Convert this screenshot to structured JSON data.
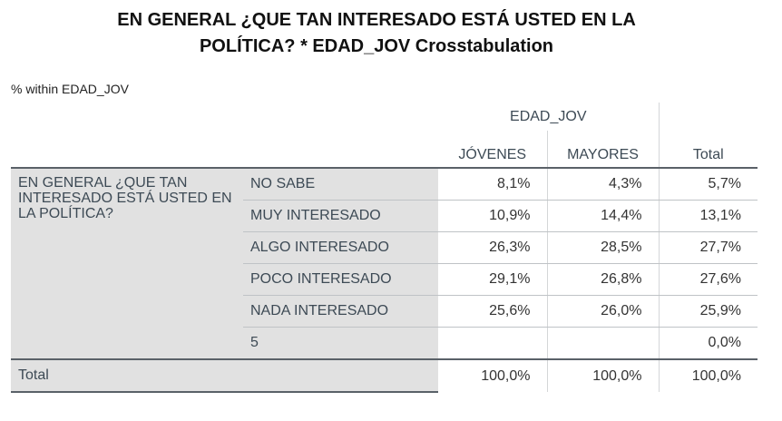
{
  "title_line1": "EN GENERAL ¿QUE TAN INTERESADO ESTÁ USTED EN LA",
  "title_line2": "POLÍTICA? * EDAD_JOV Crosstabulation",
  "subtitle": "% within EDAD_JOV",
  "header": {
    "group": "EDAD_JOV",
    "columns": [
      "JÓVENES",
      "MAYORES"
    ],
    "total": "Total"
  },
  "row_variable": "EN GENERAL ¿QUE TAN INTERESADO ESTÁ USTED EN LA POLÍTICA?",
  "rows": [
    {
      "label": "NO SABE",
      "jovenes": "8,1%",
      "mayores": "4,3%",
      "total": "5,7%"
    },
    {
      "label": "MUY INTERESADO",
      "jovenes": "10,9%",
      "mayores": "14,4%",
      "total": "13,1%"
    },
    {
      "label": "ALGO INTERESADO",
      "jovenes": "26,3%",
      "mayores": "28,5%",
      "total": "27,7%"
    },
    {
      "label": "POCO INTERESADO",
      "jovenes": "29,1%",
      "mayores": "26,8%",
      "total": "27,6%"
    },
    {
      "label": "NADA INTERESADO",
      "jovenes": "25,6%",
      "mayores": "26,0%",
      "total": "25,9%"
    },
    {
      "label": "5",
      "jovenes": "",
      "mayores": "",
      "total": "0,0%"
    }
  ],
  "total_row": {
    "label": "Total",
    "jovenes": "100,0%",
    "mayores": "100,0%",
    "total": "100,0%"
  }
}
